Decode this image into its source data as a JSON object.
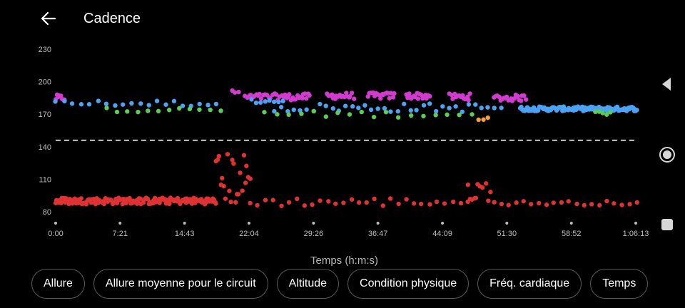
{
  "header": {
    "title": "Cadence",
    "back_icon": "arrow-left-icon"
  },
  "chart_data": {
    "type": "scatter",
    "title": "",
    "xlabel": "Temps (h:m:s)",
    "ylabel": "",
    "x_ticks": [
      "0:00",
      "7:21",
      "14:43",
      "22:04",
      "29:26",
      "36:47",
      "44:09",
      "51:30",
      "58:52",
      "1:06:13"
    ],
    "x_tick_seconds": [
      0,
      441,
      883,
      1324,
      1766,
      2207,
      2649,
      3090,
      3532,
      3973
    ],
    "y_ticks": [
      80,
      110,
      140,
      170,
      200,
      230
    ],
    "ylim": [
      80,
      230
    ],
    "reference_line": 146,
    "grid": false,
    "colors": {
      "magenta": "#d23ad0",
      "blue": "#4aa3f5",
      "green": "#5ccc55",
      "orange": "#f0a040",
      "red": "#e03232",
      "reference": "#ffffff"
    },
    "segments": [
      {
        "x_start": 0,
        "x_end": 60,
        "y_center": 185,
        "spread": 3,
        "color": "magenta",
        "count": 8
      },
      {
        "x_start": 0,
        "x_end": 1100,
        "y_center": 180,
        "spread": 3,
        "color": "blue",
        "count": 20
      },
      {
        "x_start": 350,
        "x_end": 1130,
        "y_center": 174,
        "spread": 2,
        "color": "green",
        "count": 12
      },
      {
        "x_start": 1210,
        "x_end": 1250,
        "y_center": 190,
        "spread": 2,
        "color": "magenta",
        "count": 3
      },
      {
        "x_start": 1300,
        "x_end": 1560,
        "y_center": 186,
        "spread": 3,
        "color": "magenta",
        "count": 22
      },
      {
        "x_start": 1340,
        "x_end": 1560,
        "y_center": 182,
        "spread": 2,
        "color": "blue",
        "count": 8
      },
      {
        "x_start": 1560,
        "x_end": 1740,
        "y_center": 186,
        "spread": 3,
        "color": "magenta",
        "count": 18
      },
      {
        "x_start": 1860,
        "x_end": 2040,
        "y_center": 187,
        "spread": 3,
        "color": "magenta",
        "count": 18
      },
      {
        "x_start": 2140,
        "x_end": 2320,
        "y_center": 187,
        "spread": 3,
        "color": "magenta",
        "count": 18
      },
      {
        "x_start": 2400,
        "x_end": 2560,
        "y_center": 187,
        "spread": 3,
        "color": "magenta",
        "count": 18
      },
      {
        "x_start": 2700,
        "x_end": 2840,
        "y_center": 186,
        "spread": 3,
        "color": "magenta",
        "count": 14
      },
      {
        "x_start": 3000,
        "x_end": 3220,
        "y_center": 185,
        "spread": 3,
        "color": "magenta",
        "count": 20
      },
      {
        "x_start": 1500,
        "x_end": 3050,
        "y_center": 176,
        "spread": 4,
        "color": "blue",
        "count": 36
      },
      {
        "x_start": 1430,
        "x_end": 2850,
        "y_center": 170,
        "spread": 3,
        "color": "green",
        "count": 18
      },
      {
        "x_start": 3180,
        "x_end": 3980,
        "y_center": 175,
        "spread": 2,
        "color": "blue",
        "count": 120
      },
      {
        "x_start": 3700,
        "x_end": 3800,
        "y_center": 171,
        "spread": 2,
        "color": "green",
        "count": 5
      },
      {
        "x_start": 2900,
        "x_end": 2960,
        "y_center": 166,
        "spread": 2,
        "color": "orange",
        "count": 3
      },
      {
        "x_start": 0,
        "x_end": 1100,
        "y_center": 90,
        "spread": 3,
        "color": "red",
        "count": 160
      },
      {
        "x_start": 1100,
        "x_end": 1330,
        "y_center": 110,
        "spread": 25,
        "color": "red",
        "count": 22
      },
      {
        "x_start": 1330,
        "x_end": 2880,
        "y_center": 89,
        "spread": 4,
        "color": "red",
        "count": 30
      },
      {
        "x_start": 2820,
        "x_end": 2980,
        "y_center": 100,
        "spread": 10,
        "color": "red",
        "count": 10
      },
      {
        "x_start": 3000,
        "x_end": 3980,
        "y_center": 88,
        "spread": 2,
        "color": "red",
        "count": 20
      }
    ]
  },
  "chips": [
    {
      "label": "Allure"
    },
    {
      "label": "Allure moyenne pour le circuit"
    },
    {
      "label": "Altitude"
    },
    {
      "label": "Condition physique"
    },
    {
      "label": "Fréq. cardiaque"
    },
    {
      "label": "Temps"
    }
  ],
  "navbar": {
    "back_icon": "triangle-back-icon",
    "home_icon": "circle-home-icon",
    "recent_icon": "square-recents-icon"
  }
}
